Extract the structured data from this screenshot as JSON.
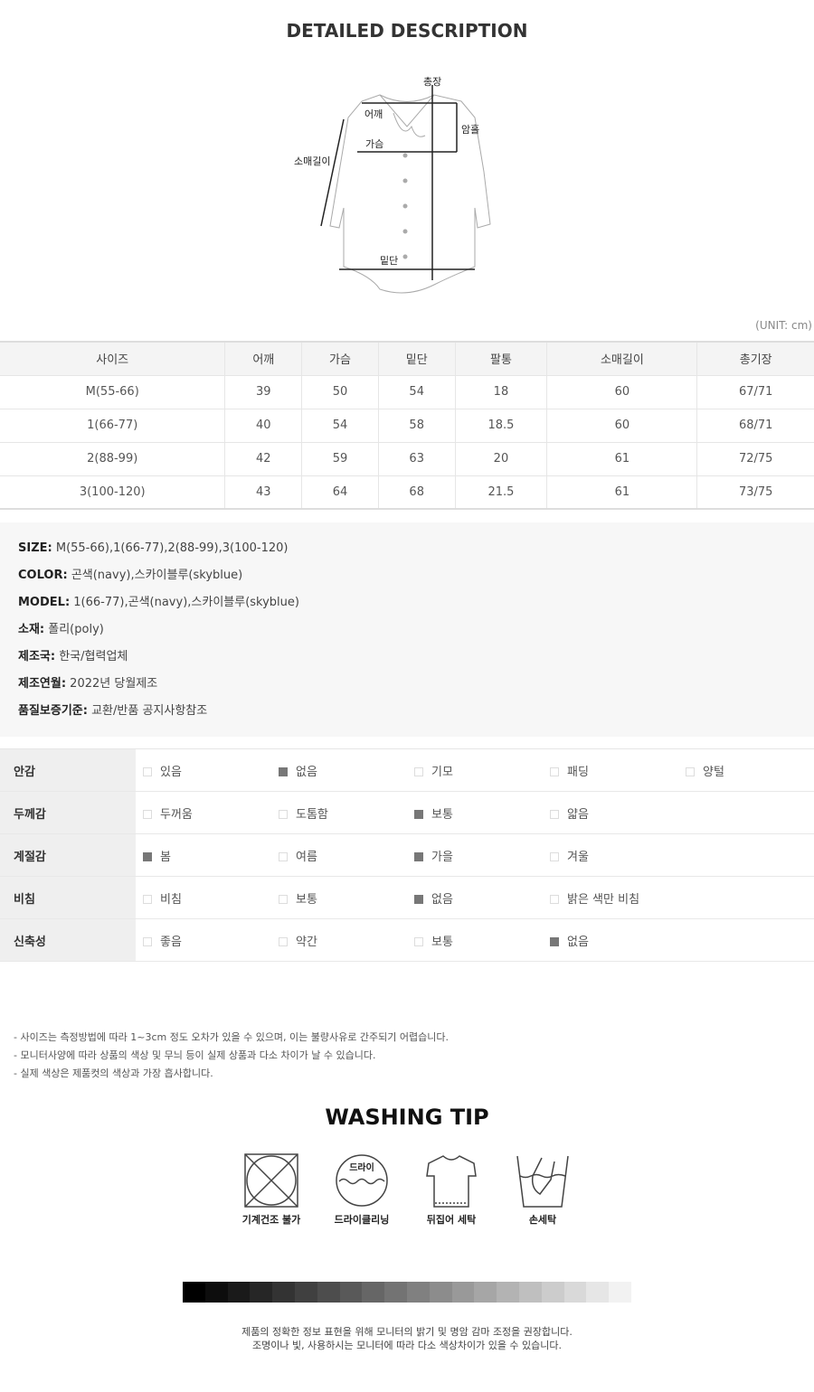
{
  "title": "DETAILED DESCRIPTION",
  "diagram_labels": {
    "length": "총장",
    "shoulder": "어깨",
    "armhole": "암홀",
    "chest": "가슴",
    "sleeve": "소매길이",
    "hem": "밑단"
  },
  "unit": "(UNIT: cm)",
  "size_table": {
    "headers": [
      "사이즈",
      "어깨",
      "가슴",
      "밑단",
      "팔통",
      "소매길이",
      "총기장"
    ],
    "rows": [
      [
        "M(55-66)",
        "39",
        "50",
        "54",
        "18",
        "60",
        "67/71"
      ],
      [
        "1(66-77)",
        "40",
        "54",
        "58",
        "18.5",
        "60",
        "68/71"
      ],
      [
        "2(88-99)",
        "42",
        "59",
        "63",
        "20",
        "61",
        "72/75"
      ],
      [
        "3(100-120)",
        "43",
        "64",
        "68",
        "21.5",
        "61",
        "73/75"
      ]
    ]
  },
  "info": [
    {
      "k": "SIZE:",
      "v": " M(55-66),1(66-77),2(88-99),3(100-120)"
    },
    {
      "k": "COLOR:",
      "v": " 곤색(navy),스카이블루(skyblue)"
    },
    {
      "k": "MODEL:",
      "v": " 1(66-77),곤색(navy),스카이블루(skyblue)"
    },
    {
      "k": "소재:",
      "v": " 폴리(poly)"
    },
    {
      "k": "제조국:",
      "v": " 한국/협력업체"
    },
    {
      "k": "제조연월:",
      "v": " 2022년 당월제조"
    },
    {
      "k": "품질보증기준:",
      "v": " 교환/반품 공지사항참조"
    }
  ],
  "fabric": [
    {
      "k": "안감",
      "opts": [
        [
          "있음",
          false
        ],
        [
          "없음",
          true
        ],
        [
          "기모",
          false
        ],
        [
          "패딩",
          false
        ],
        [
          "양털",
          false
        ]
      ]
    },
    {
      "k": "두께감",
      "opts": [
        [
          "두꺼움",
          false
        ],
        [
          "도톰함",
          false
        ],
        [
          "보통",
          true
        ],
        [
          "얇음",
          false
        ]
      ]
    },
    {
      "k": "계절감",
      "opts": [
        [
          "봄",
          true
        ],
        [
          "여름",
          false
        ],
        [
          "가을",
          true
        ],
        [
          "겨울",
          false
        ]
      ]
    },
    {
      "k": "비침",
      "opts": [
        [
          "비침",
          false
        ],
        [
          "보통",
          false
        ],
        [
          "없음",
          true
        ],
        [
          "밝은 색만 비침",
          false
        ]
      ]
    },
    {
      "k": "신축성",
      "opts": [
        [
          "좋음",
          false
        ],
        [
          "약간",
          false
        ],
        [
          "보통",
          false
        ],
        [
          "없음",
          true
        ]
      ]
    }
  ],
  "notes": [
    "- 사이즈는 측정방법에 따라 1~3cm 정도 오차가 있을 수 있으며, 이는 불량사유로 간주되기 어렵습니다.",
    "- 모니터사양에 따라 상품의 색상 및 무늬 등이 실제 상품과 다소 차이가 날 수 있습니다.",
    "- 실제 색상은 제품컷의 색상과 가장 흡사합니다."
  ],
  "washing_title": "WASHING TIP",
  "washing": [
    {
      "icon": "no-tumble-dry-icon",
      "label": "기계건조 불가"
    },
    {
      "icon": "dry-clean-icon",
      "label": "드라이클리닝",
      "inner": "드라이"
    },
    {
      "icon": "inside-out-icon",
      "label": "뒤집어 세탁"
    },
    {
      "icon": "hand-wash-icon",
      "label": "손세탁"
    }
  ],
  "grayscale": [
    "#000000",
    "#0d0d0d",
    "#1a1a1a",
    "#262626",
    "#333333",
    "#404040",
    "#4d4d4d",
    "#595959",
    "#666666",
    "#737373",
    "#808080",
    "#8c8c8c",
    "#999999",
    "#a6a6a6",
    "#b3b3b3",
    "#bfbfbf",
    "#cccccc",
    "#d9d9d9",
    "#e6e6e6",
    "#f2f2f2"
  ],
  "footer": [
    "제품의 정확한 정보 표현을 위해 모니터의 밝기 및 명암 감마 조정을 권장합니다.",
    "조명이나 빛, 사용하시는 모니터에 따라 다소 색상차이가 있을 수 있습니다."
  ]
}
